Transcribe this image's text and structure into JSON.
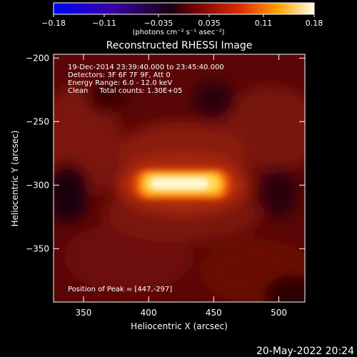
{
  "colorbar": {
    "ticks": [
      {
        "label": "−0.18",
        "v": -0.18
      },
      {
        "label": "−0.11",
        "v": -0.11
      },
      {
        "label": "−0.035",
        "v": -0.035
      },
      {
        "label": "0.035",
        "v": 0.035
      },
      {
        "label": "0.11",
        "v": 0.11
      },
      {
        "label": "0.18",
        "v": 0.18
      }
    ],
    "range": [
      -0.18,
      0.18
    ],
    "units": "(photons cm⁻² s⁻¹ asec⁻²)"
  },
  "chart_data": {
    "type": "heatmap",
    "title": "Reconstructed RHESSI Image",
    "xlabel": "Heliocentric X (arcsec)",
    "ylabel": "Heliocentric Y (arcsec)",
    "xlim": [
      327,
      520
    ],
    "ylim": [
      -392,
      -197
    ],
    "xticks": [
      350,
      400,
      450,
      500
    ],
    "yticks": [
      -200,
      -250,
      -300,
      -350
    ],
    "annotations": [
      "19-Dec-2014 23:39:40.000 to 23:45:40.000",
      "Detectors: 3F 6F 7F 9F, Att 0",
      "Energy Range: 6.0 - 12.0 keV",
      "Clean     Total counts: 1.30E+05",
      "Position of Peak = [447,-297]"
    ],
    "peak": [
      447,
      -297
    ]
  },
  "footer": {
    "timestamp": "20-May-2022 20:24"
  }
}
